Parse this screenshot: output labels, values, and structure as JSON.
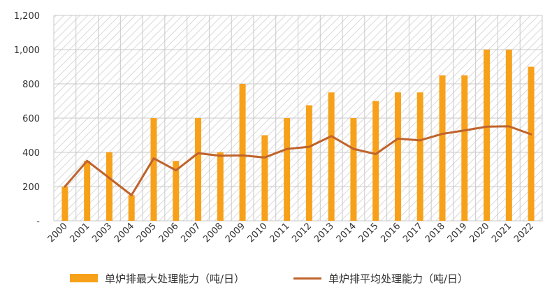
{
  "chart_data": {
    "type": "bar",
    "categories": [
      "2000",
      "2001",
      "2003",
      "2004",
      "2005",
      "2006",
      "2007",
      "2008",
      "2009",
      "2010",
      "2011",
      "2012",
      "2013",
      "2014",
      "2015",
      "2016",
      "2017",
      "2018",
      "2019",
      "2020",
      "2021",
      "2022"
    ],
    "series": [
      {
        "name": "单炉排最大处理能力（吨/日）",
        "type": "bar",
        "color": "#F7A11A",
        "values": [
          200,
          350,
          400,
          150,
          600,
          350,
          600,
          400,
          800,
          500,
          600,
          675,
          750,
          600,
          700,
          750,
          750,
          850,
          850,
          1000,
          1000,
          900
        ]
      },
      {
        "name": "单炉排平均处理能力（吨/日）",
        "type": "line",
        "color": "#C0632B",
        "values": [
          200,
          350,
          250,
          150,
          365,
          295,
          395,
          380,
          382,
          370,
          420,
          432,
          495,
          420,
          390,
          480,
          470,
          508,
          528,
          550,
          552,
          505
        ]
      }
    ],
    "ylim": [
      0,
      1200
    ],
    "yticks": [
      0,
      200,
      400,
      600,
      800,
      1000,
      1200
    ],
    "ytick_labels": [
      "-",
      "200",
      "400",
      "600",
      "800",
      "1,000",
      "1,200"
    ],
    "grid": true,
    "background_pattern": "diagonal-hatch",
    "legend_position": "bottom",
    "title": "",
    "xlabel": "",
    "ylabel": ""
  }
}
